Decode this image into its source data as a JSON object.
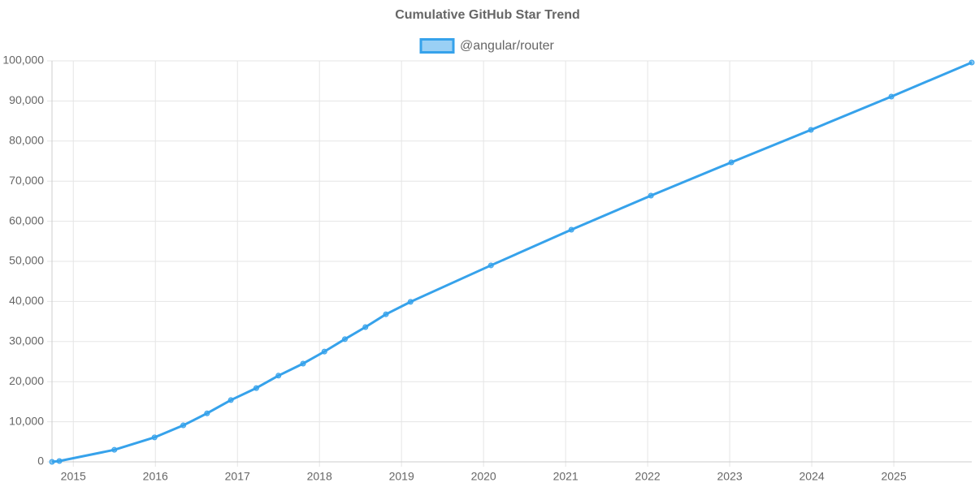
{
  "chart_data": {
    "type": "line",
    "title": "Cumulative GitHub Star Trend",
    "x": [
      2014.74,
      2014.83,
      2015.5,
      2015.99,
      2016.34,
      2016.63,
      2016.92,
      2017.23,
      2017.5,
      2017.8,
      2018.06,
      2018.31,
      2018.56,
      2018.81,
      2019.11,
      2020.09,
      2021.07,
      2022.04,
      2023.02,
      2023.99,
      2024.97,
      2025.95
    ],
    "series": [
      {
        "name": "@angular/router",
        "color": "#36a2eb",
        "values": [
          0,
          200,
          3000,
          6100,
          9100,
          12100,
          15400,
          18400,
          21500,
          24500,
          27500,
          30600,
          33600,
          36800,
          39900,
          49000,
          57900,
          66400,
          74700,
          82800,
          91100,
          99600
        ]
      }
    ],
    "xlim": [
      2014.74,
      2025.95
    ],
    "xticks": [
      2015,
      2016,
      2017,
      2018,
      2019,
      2020,
      2021,
      2022,
      2023,
      2024,
      2025
    ],
    "ylim": [
      0,
      100000
    ],
    "yticks": [
      0,
      {
        "value": 10000,
        "label": "10,000"
      },
      {
        "value": 20000,
        "label": "20,000"
      },
      {
        "value": 30000,
        "label": "30,000"
      },
      {
        "value": 40000,
        "label": "40,000"
      },
      {
        "value": 50000,
        "label": "50,000"
      },
      {
        "value": 60000,
        "label": "60,000"
      },
      {
        "value": 70000,
        "label": "70,000"
      },
      {
        "value": 80000,
        "label": "80,000"
      },
      {
        "value": 90000,
        "label": "90,000"
      },
      {
        "value": 100000,
        "label": "100,000"
      }
    ],
    "grid": true,
    "legend": "top"
  }
}
